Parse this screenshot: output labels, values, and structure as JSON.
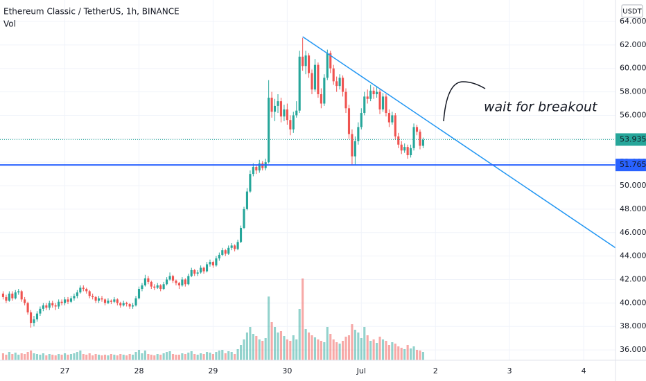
{
  "chart_data": {
    "type": "candlestick",
    "title": "Ethereum Classic / TetherUS, 1h, BINANCE",
    "indicator": "Vol",
    "currency": "USDT",
    "x": [
      -20,
      -19,
      -18,
      -17,
      -16,
      -15,
      -14,
      -13,
      -12,
      -11,
      -10,
      -9,
      -8,
      -7,
      -6,
      -5,
      -4,
      -3,
      -2,
      -1,
      0,
      1,
      2,
      3,
      4,
      5,
      6,
      7,
      8,
      9,
      10,
      11,
      12,
      13,
      14,
      15,
      16,
      17,
      18,
      19,
      20,
      21,
      22,
      23,
      24,
      25,
      26,
      27,
      28,
      29,
      30,
      31,
      32,
      33,
      34,
      35,
      36,
      37,
      38,
      39,
      40,
      41,
      42,
      43,
      44,
      45,
      46,
      47,
      48,
      49,
      50,
      51,
      52,
      53,
      54,
      55,
      56,
      57,
      58,
      59,
      60,
      61,
      62,
      63,
      64,
      65,
      66,
      67,
      68,
      69,
      70,
      71,
      72,
      73,
      74,
      75,
      76,
      77,
      78,
      79,
      80,
      81,
      82,
      83,
      84,
      85,
      86,
      87,
      88,
      89,
      90,
      91,
      92,
      93,
      94,
      95,
      96,
      97,
      98,
      99,
      100,
      101,
      102,
      103,
      104,
      105,
      106,
      107,
      108,
      109,
      110,
      111,
      112,
      113,
      114,
      115,
      116
    ],
    "candles": [
      [
        40.8,
        41.0,
        40.3,
        40.5
      ],
      [
        40.5,
        40.7,
        40.0,
        40.2
      ],
      [
        40.2,
        41.0,
        40.1,
        40.8
      ],
      [
        40.8,
        41.0,
        40.2,
        40.4
      ],
      [
        40.4,
        41.1,
        40.3,
        40.9
      ],
      [
        40.9,
        41.2,
        40.7,
        41.0
      ],
      [
        41.0,
        41.1,
        40.1,
        40.3
      ],
      [
        40.3,
        40.5,
        39.8,
        40.0
      ],
      [
        40.0,
        40.1,
        39.0,
        39.2
      ],
      [
        39.2,
        39.4,
        37.9,
        38.3
      ],
      [
        38.3,
        38.9,
        38.0,
        38.6
      ],
      [
        38.6,
        39.3,
        38.4,
        39.1
      ],
      [
        39.1,
        39.7,
        38.9,
        39.5
      ],
      [
        39.5,
        40.0,
        39.3,
        39.8
      ],
      [
        39.8,
        40.0,
        39.4,
        39.6
      ],
      [
        39.6,
        40.2,
        39.4,
        40.0
      ],
      [
        40.0,
        40.2,
        39.6,
        39.8
      ],
      [
        39.8,
        40.0,
        39.4,
        39.7
      ],
      [
        39.7,
        40.3,
        39.5,
        40.1
      ],
      [
        40.1,
        40.3,
        39.8,
        40.0
      ],
      [
        40.0,
        40.5,
        39.8,
        40.3
      ],
      [
        40.3,
        40.5,
        39.9,
        40.1
      ],
      [
        40.1,
        40.6,
        40.0,
        40.4
      ],
      [
        40.4,
        40.8,
        40.2,
        40.6
      ],
      [
        40.6,
        41.1,
        40.4,
        40.9
      ],
      [
        40.9,
        41.5,
        40.8,
        41.3
      ],
      [
        41.3,
        41.5,
        41.0,
        41.2
      ],
      [
        41.2,
        41.3,
        40.8,
        41.0
      ],
      [
        41.0,
        41.1,
        40.4,
        40.6
      ],
      [
        40.6,
        40.8,
        40.3,
        40.5
      ],
      [
        40.5,
        40.6,
        40.0,
        40.2
      ],
      [
        40.2,
        40.6,
        40.0,
        40.4
      ],
      [
        40.4,
        40.6,
        40.1,
        40.3
      ],
      [
        40.3,
        40.4,
        39.8,
        40.0
      ],
      [
        40.0,
        40.4,
        39.9,
        40.2
      ],
      [
        40.2,
        40.3,
        39.9,
        40.1
      ],
      [
        40.1,
        40.5,
        40.0,
        40.3
      ],
      [
        40.3,
        40.4,
        39.8,
        40.0
      ],
      [
        40.0,
        40.1,
        39.6,
        39.8
      ],
      [
        39.8,
        40.2,
        39.7,
        40.0
      ],
      [
        40.0,
        40.1,
        39.7,
        39.9
      ],
      [
        39.9,
        40.0,
        39.5,
        39.7
      ],
      [
        39.7,
        40.0,
        39.5,
        39.8
      ],
      [
        39.8,
        40.6,
        39.7,
        40.4
      ],
      [
        40.4,
        41.4,
        40.3,
        41.2
      ],
      [
        41.2,
        41.7,
        41.0,
        41.5
      ],
      [
        41.5,
        42.4,
        41.4,
        42.1
      ],
      [
        42.1,
        42.3,
        41.6,
        41.8
      ],
      [
        41.8,
        41.9,
        41.2,
        41.4
      ],
      [
        41.4,
        41.6,
        41.1,
        41.3
      ],
      [
        41.3,
        41.7,
        41.2,
        41.5
      ],
      [
        41.5,
        41.6,
        41.0,
        41.2
      ],
      [
        41.2,
        41.8,
        41.1,
        41.6
      ],
      [
        41.6,
        42.2,
        41.5,
        42.0
      ],
      [
        42.0,
        42.6,
        41.9,
        42.3
      ],
      [
        42.3,
        42.4,
        41.7,
        41.9
      ],
      [
        41.9,
        42.0,
        41.5,
        41.7
      ],
      [
        41.7,
        41.8,
        41.2,
        41.5
      ],
      [
        41.5,
        42.2,
        41.4,
        42.0
      ],
      [
        42.0,
        42.1,
        41.4,
        41.6
      ],
      [
        41.6,
        42.5,
        41.5,
        42.3
      ],
      [
        42.3,
        43.0,
        42.2,
        42.8
      ],
      [
        42.8,
        42.9,
        42.3,
        42.5
      ],
      [
        42.5,
        42.8,
        42.3,
        42.6
      ],
      [
        42.6,
        43.2,
        42.5,
        43.0
      ],
      [
        43.0,
        43.1,
        42.5,
        42.7
      ],
      [
        42.7,
        43.5,
        42.6,
        43.3
      ],
      [
        43.3,
        43.7,
        43.1,
        43.5
      ],
      [
        43.5,
        43.6,
        43.0,
        43.2
      ],
      [
        43.2,
        44.0,
        43.1,
        43.8
      ],
      [
        43.8,
        44.3,
        43.6,
        44.1
      ],
      [
        44.1,
        44.7,
        44.0,
        44.5
      ],
      [
        44.5,
        44.6,
        44.0,
        44.2
      ],
      [
        44.2,
        44.9,
        44.1,
        44.7
      ],
      [
        44.7,
        45.1,
        44.5,
        44.9
      ],
      [
        44.9,
        45.0,
        44.4,
        44.6
      ],
      [
        44.6,
        45.4,
        44.5,
        45.2
      ],
      [
        45.2,
        46.6,
        45.1,
        46.4
      ],
      [
        46.4,
        48.2,
        46.3,
        48.0
      ],
      [
        48.0,
        49.8,
        47.9,
        49.5
      ],
      [
        49.5,
        51.3,
        49.4,
        51.0
      ],
      [
        51.0,
        51.9,
        50.8,
        51.6
      ],
      [
        51.6,
        51.8,
        51.0,
        51.3
      ],
      [
        51.3,
        52.2,
        51.1,
        51.9
      ],
      [
        51.9,
        52.1,
        51.3,
        51.5
      ],
      [
        51.5,
        52.3,
        51.3,
        52.0
      ],
      [
        52.0,
        59.0,
        51.9,
        57.5
      ],
      [
        57.5,
        58.0,
        55.8,
        56.3
      ],
      [
        56.3,
        57.4,
        55.5,
        56.8
      ],
      [
        56.8,
        57.8,
        56.2,
        57.2
      ],
      [
        57.2,
        57.5,
        55.4,
        55.9
      ],
      [
        55.9,
        56.9,
        55.5,
        56.5
      ],
      [
        56.5,
        57.0,
        55.2,
        55.6
      ],
      [
        55.6,
        56.0,
        54.3,
        54.8
      ],
      [
        54.8,
        56.3,
        54.5,
        56.0
      ],
      [
        56.0,
        57.2,
        55.8,
        56.4
      ],
      [
        56.4,
        61.5,
        56.2,
        61.0
      ],
      [
        61.0,
        62.6,
        59.8,
        60.2
      ],
      [
        60.2,
        61.5,
        59.5,
        61.1
      ],
      [
        61.1,
        61.3,
        59.2,
        59.6
      ],
      [
        59.6,
        59.9,
        57.8,
        58.2
      ],
      [
        58.2,
        60.8,
        58.0,
        60.3
      ],
      [
        60.3,
        60.5,
        57.5,
        57.8
      ],
      [
        57.8,
        58.3,
        56.6,
        57.0
      ],
      [
        57.0,
        59.5,
        56.8,
        59.2
      ],
      [
        59.2,
        61.6,
        59.0,
        61.3
      ],
      [
        61.3,
        61.5,
        59.6,
        60.0
      ],
      [
        60.0,
        60.3,
        58.6,
        58.9
      ],
      [
        58.9,
        59.3,
        58.0,
        58.5
      ],
      [
        58.5,
        59.5,
        58.2,
        59.2
      ],
      [
        59.2,
        59.4,
        57.6,
        58.0
      ],
      [
        58.0,
        58.3,
        56.2,
        56.6
      ],
      [
        56.6,
        56.9,
        54.0,
        54.4
      ],
      [
        54.4,
        54.8,
        51.8,
        52.5
      ],
      [
        52.5,
        54.2,
        51.8,
        53.8
      ],
      [
        53.8,
        55.4,
        53.5,
        55.0
      ],
      [
        55.0,
        56.6,
        54.8,
        56.2
      ],
      [
        56.2,
        58.0,
        56.0,
        57.6
      ],
      [
        57.6,
        58.2,
        57.0,
        57.4
      ],
      [
        57.4,
        58.6,
        57.2,
        58.1
      ],
      [
        58.1,
        58.4,
        57.4,
        57.8
      ],
      [
        57.8,
        58.5,
        57.5,
        58.0
      ],
      [
        58.0,
        58.2,
        56.1,
        56.5
      ],
      [
        56.5,
        57.9,
        56.3,
        57.6
      ],
      [
        57.6,
        57.8,
        55.9,
        56.2
      ],
      [
        56.2,
        56.5,
        55.0,
        55.4
      ],
      [
        55.4,
        56.3,
        55.2,
        56.0
      ],
      [
        56.0,
        56.2,
        53.9,
        54.2
      ],
      [
        54.2,
        54.5,
        53.2,
        53.5
      ],
      [
        53.5,
        53.8,
        52.7,
        53.0
      ],
      [
        53.0,
        53.6,
        52.8,
        53.3
      ],
      [
        53.3,
        53.5,
        52.3,
        52.6
      ],
      [
        52.6,
        53.5,
        52.4,
        53.2
      ],
      [
        53.2,
        55.3,
        53.0,
        55.0
      ],
      [
        55.0,
        55.2,
        54.3,
        54.6
      ],
      [
        54.6,
        54.8,
        53.1,
        53.4
      ],
      [
        53.4,
        54.1,
        53.2,
        53.9
      ]
    ],
    "volumes": [
      10,
      8,
      12,
      9,
      11,
      8,
      10,
      9,
      12,
      14,
      10,
      9,
      8,
      10,
      7,
      9,
      8,
      7,
      9,
      8,
      10,
      8,
      9,
      10,
      12,
      14,
      9,
      8,
      10,
      7,
      9,
      8,
      7,
      8,
      7,
      9,
      8,
      7,
      9,
      8,
      7,
      9,
      8,
      12,
      15,
      10,
      14,
      9,
      8,
      7,
      9,
      8,
      10,
      12,
      13,
      9,
      8,
      8,
      10,
      9,
      11,
      13,
      9,
      8,
      10,
      9,
      12,
      11,
      9,
      12,
      14,
      15,
      10,
      13,
      12,
      9,
      16,
      22,
      30,
      40,
      48,
      38,
      35,
      30,
      28,
      32,
      92,
      55,
      48,
      40,
      42,
      35,
      30,
      28,
      36,
      30,
      74,
      118,
      45,
      40,
      36,
      33,
      30,
      28,
      26,
      48,
      38,
      30,
      26,
      24,
      28,
      34,
      36,
      52,
      44,
      40,
      32,
      48,
      36,
      28,
      30,
      25,
      34,
      30,
      28,
      22,
      26,
      24,
      20,
      18,
      16,
      22,
      17,
      20,
      15,
      14,
      12
    ],
    "xlim": [
      -21,
      178.3
    ],
    "ylim": [
      35.12,
      65.83
    ],
    "xticks": [
      {
        "value": 0,
        "label": "27"
      },
      {
        "value": 24,
        "label": "28"
      },
      {
        "value": 48,
        "label": "29"
      },
      {
        "value": 72,
        "label": "30"
      },
      {
        "value": 96,
        "label": "Jul"
      },
      {
        "value": 120,
        "label": "2"
      },
      {
        "value": 144,
        "label": "3"
      },
      {
        "value": 168,
        "label": "4"
      }
    ],
    "yticks": [
      {
        "value": 36,
        "label": "36.000"
      },
      {
        "value": 38,
        "label": "38.000"
      },
      {
        "value": 40,
        "label": "40.000"
      },
      {
        "value": 42,
        "label": "42.000"
      },
      {
        "value": 44,
        "label": "44.000"
      },
      {
        "value": 46,
        "label": "46.000"
      },
      {
        "value": 48,
        "label": "48.000"
      },
      {
        "value": 50,
        "label": "50.000"
      },
      {
        "value": 52,
        "label": "52.000"
      },
      {
        "value": 54,
        "label": "54.000"
      },
      {
        "value": 56,
        "label": "56.000"
      },
      {
        "value": 58,
        "label": "58.000"
      },
      {
        "value": 60,
        "label": "60.000"
      },
      {
        "value": 62,
        "label": "62.000"
      },
      {
        "value": 64,
        "label": "64.000"
      }
    ],
    "grid": true,
    "up_color": "#26a69a",
    "down_color": "#ef5350",
    "last_price": {
      "value": 53.935,
      "color": "#26a69a"
    },
    "levels": [
      {
        "value": 51.765,
        "color": "#2962ff"
      }
    ],
    "trendline": {
      "x": [
        77,
        178.3
      ],
      "y": [
        62.7,
        44.7
      ],
      "color": "#2196f3"
    },
    "annotation": {
      "text": "wait for breakout",
      "color": "#f23645"
    }
  }
}
